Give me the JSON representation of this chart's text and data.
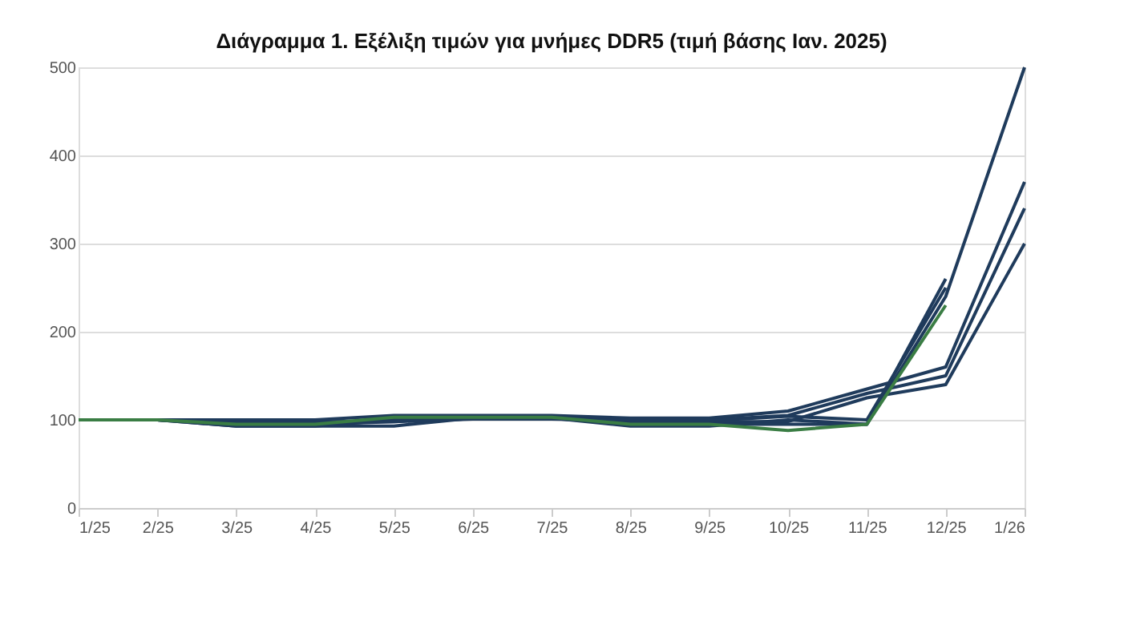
{
  "chart_data": {
    "type": "line",
    "title": "Διάγραμμα 1. Εξέλιξη τιμών για μνήμες DDR5 (τιμή βάσης Ιαν. 2025)",
    "categories": [
      "1/25",
      "2/25",
      "3/25",
      "4/25",
      "5/25",
      "6/25",
      "7/25",
      "8/25",
      "9/25",
      "10/25",
      "11/25",
      "12/25",
      "1/26"
    ],
    "series": [
      {
        "color": "#1f3b5c",
        "values": [
          100,
          100,
          93,
          93,
          93,
          102,
          102,
          93,
          93,
          100,
          95,
          240,
          500
        ]
      },
      {
        "color": "#1f3b5c",
        "values": [
          100,
          100,
          100,
          100,
          105,
          105,
          105,
          102,
          102,
          110,
          135,
          160,
          370
        ]
      },
      {
        "color": "#1f3b5c",
        "values": [
          100,
          100,
          97,
          97,
          100,
          103,
          103,
          100,
          100,
          105,
          130,
          150,
          340
        ]
      },
      {
        "color": "#1f3b5c",
        "values": [
          100,
          100,
          95,
          95,
          98,
          102,
          102,
          98,
          98,
          98,
          125,
          140,
          300
        ]
      },
      {
        "color": "#1f3b5c",
        "values": [
          100,
          100,
          93,
          93,
          100,
          102,
          102,
          95,
          95,
          95,
          95,
          260,
          null
        ]
      },
      {
        "color": "#1f3b5c",
        "values": [
          100,
          100,
          98,
          98,
          98,
          101,
          101,
          99,
          99,
          104,
          100,
          250,
          null
        ]
      },
      {
        "color": "#3a7d44",
        "values": [
          100,
          100,
          95,
          95,
          103,
          103,
          103,
          95,
          95,
          88,
          95,
          230,
          null
        ]
      }
    ],
    "ylim": [
      0,
      500
    ],
    "yticks": [
      0,
      100,
      200,
      300,
      400,
      500
    ],
    "grid": "y",
    "marker": "none",
    "line_style": "solid"
  }
}
